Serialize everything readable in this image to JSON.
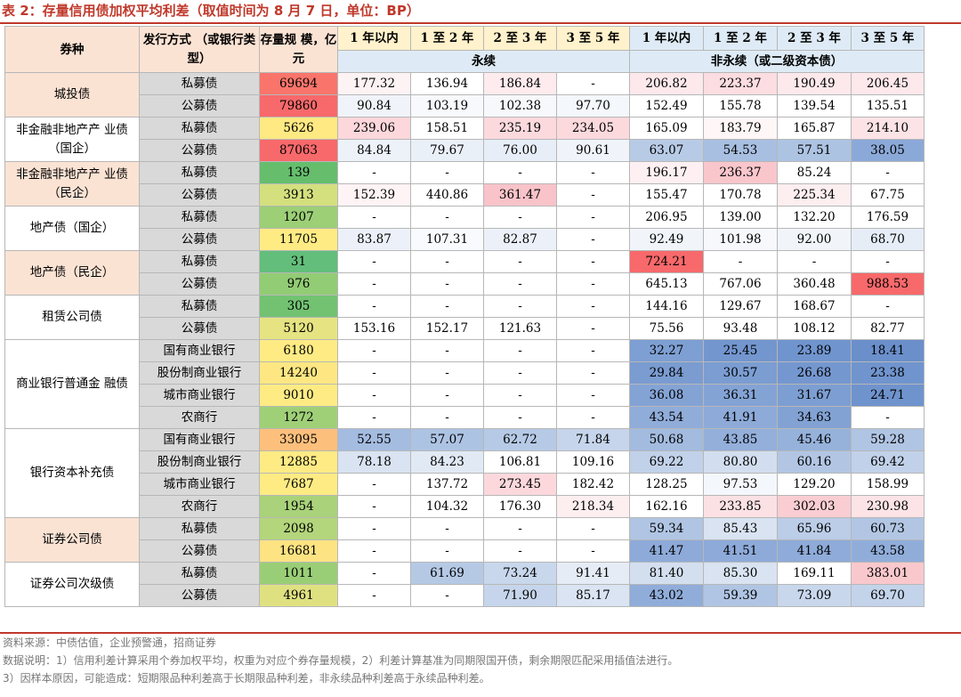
{
  "title": "表 2：存量信用债加权平均利差（取值时间为 8 月 7 日，单位：BP）",
  "header": {
    "variety": "券种",
    "issue_method": "发行方式\n（或银行类型）",
    "scale": "存量规\n模，亿元",
    "terms": [
      "1 年以内",
      "1 至 2 年",
      "2 至 3 年",
      "3 至 5 年",
      "1 年以内",
      "1 至 2 年",
      "2 至 3 年",
      "3 至 5 年"
    ],
    "perpetual": "永续",
    "non_perpetual": "非永续（或二级资本债）"
  },
  "groups": [
    {
      "name": "城投债",
      "cat_bg": "#FBE3D4",
      "rows": [
        {
          "method": "私募债",
          "scale": "69694",
          "scale_bg": "#F9756B",
          "cells": [
            "177.32",
            "136.94",
            "186.84",
            "-",
            "206.82",
            "223.37",
            "190.49",
            "206.45"
          ],
          "cell_bg": [
            "#FEF3F4",
            "#FFFFFF",
            "#FDEBEE",
            "#FFFFFF",
            "#FDE8EB",
            "#FCDDE1",
            "#FDE9EC",
            "#FDE8EB"
          ]
        },
        {
          "method": "公募债",
          "scale": "79860",
          "scale_bg": "#F8696B",
          "cells": [
            "90.84",
            "103.19",
            "102.38",
            "97.70",
            "152.49",
            "155.78",
            "139.54",
            "135.51"
          ],
          "cell_bg": [
            "#F0F4FA",
            "#F7F9FC",
            "#F6F8FC",
            "#F4F7FB",
            "#FFFFFF",
            "#FFFFFF",
            "#FFFFFF",
            "#FFFFFF"
          ]
        }
      ]
    },
    {
      "name": "非金融非地产产\n业债（国企）",
      "cat_bg": "#FFFFFF",
      "rows": [
        {
          "method": "私募债",
          "scale": "5626",
          "scale_bg": "#FFE982",
          "cells": [
            "239.06",
            "158.51",
            "235.19",
            "234.05",
            "165.09",
            "183.79",
            "165.87",
            "214.10"
          ],
          "cell_bg": [
            "#FCD7DB",
            "#FFFFFF",
            "#FCD9DD",
            "#FCD9DD",
            "#FFFFFF",
            "#FEF6F7",
            "#FFFFFF",
            "#FCE3E6"
          ]
        },
        {
          "method": "公募债",
          "scale": "87063",
          "scale_bg": "#F8696B",
          "cells": [
            "84.84",
            "79.67",
            "76.00",
            "90.61",
            "63.07",
            "54.53",
            "57.51",
            "38.05"
          ],
          "cell_bg": [
            "#EDF2F9",
            "#EAF0F8",
            "#E8EEF7",
            "#F0F4FA",
            "#B8CBE6",
            "#A8BFE1",
            "#ADC3E2",
            "#8BA9D8"
          ]
        }
      ]
    },
    {
      "name": "非金融非地产产\n业债（民企）",
      "cat_bg": "#FBE3D4",
      "rows": [
        {
          "method": "私募债",
          "scale": "139",
          "scale_bg": "#66BE6D",
          "cells": [
            "-",
            "-",
            "-",
            "-",
            "196.17",
            "236.37",
            "85.24",
            "-"
          ],
          "cell_bg": [
            "#FFFFFF",
            "#FFFFFF",
            "#FFFFFF",
            "#FFFFFF",
            "#FEF0F2",
            "#F9C6CC",
            "#FFFFFF",
            "#FFFFFF"
          ]
        },
        {
          "method": "公募债",
          "scale": "3913",
          "scale_bg": "#D4E07E",
          "cells": [
            "152.39",
            "440.86",
            "361.47",
            "-",
            "155.47",
            "170.78",
            "225.34",
            "67.75"
          ],
          "cell_bg": [
            "#FEF4F6",
            "#FFFFFF",
            "#F8C3C9",
            "#FFFFFF",
            "#FFFFFF",
            "#FFFFFF",
            "#FDEEF0",
            "#FFFFFF"
          ]
        }
      ]
    },
    {
      "name": "地产债（国企）",
      "cat_bg": "#FFFFFF",
      "rows": [
        {
          "method": "私募债",
          "scale": "1207",
          "scale_bg": "#9CCF76",
          "cells": [
            "-",
            "-",
            "-",
            "-",
            "206.95",
            "139.00",
            "132.20",
            "176.59"
          ],
          "cell_bg": [
            "#FFFFFF",
            "#FFFFFF",
            "#FFFFFF",
            "#FFFFFF",
            "#FFFFFF",
            "#FFFFFF",
            "#FFFFFF",
            "#FFFFFF"
          ]
        },
        {
          "method": "公募债",
          "scale": "11705",
          "scale_bg": "#FEEB84",
          "cells": [
            "83.87",
            "107.31",
            "82.87",
            "-",
            "92.49",
            "101.98",
            "92.00",
            "68.70"
          ],
          "cell_bg": [
            "#ECF1F9",
            "#F8FAFD",
            "#ECF1F9",
            "#FFFFFF",
            "#F1F5FA",
            "#F6F8FC",
            "#F1F5FA",
            "#E6EDF7"
          ]
        }
      ]
    },
    {
      "name": "地产债（民企）",
      "cat_bg": "#FBE3D4",
      "rows": [
        {
          "method": "私募债",
          "scale": "31",
          "scale_bg": "#63BE7B",
          "cells": [
            "-",
            "-",
            "-",
            "-",
            "724.21",
            "-",
            "-",
            "-"
          ],
          "cell_bg": [
            "#FFFFFF",
            "#FFFFFF",
            "#FFFFFF",
            "#FFFFFF",
            "#F8696B",
            "#FFFFFF",
            "#FFFFFF",
            "#FFFFFF"
          ]
        },
        {
          "method": "公募债",
          "scale": "976",
          "scale_bg": "#92CC74",
          "cells": [
            "-",
            "-",
            "-",
            "-",
            "645.13",
            "767.06",
            "360.48",
            "988.53"
          ],
          "cell_bg": [
            "#FFFFFF",
            "#FFFFFF",
            "#FFFFFF",
            "#FFFFFF",
            "#FFFFFF",
            "#FFFFFF",
            "#FFFFFF",
            "#F8696B"
          ]
        }
      ]
    },
    {
      "name": "租赁公司债",
      "cat_bg": "#FFFFFF",
      "rows": [
        {
          "method": "私募债",
          "scale": "305",
          "scale_bg": "#72C272",
          "cells": [
            "-",
            "-",
            "-",
            "-",
            "144.16",
            "129.67",
            "168.67",
            "-"
          ],
          "cell_bg": [
            "#FFFFFF",
            "#FFFFFF",
            "#FFFFFF",
            "#FFFFFF",
            "#FFFFFF",
            "#FFFFFF",
            "#FFFFFF",
            "#FFFFFF"
          ]
        },
        {
          "method": "公募债",
          "scale": "5120",
          "scale_bg": "#E5E382",
          "cells": [
            "153.16",
            "152.17",
            "121.63",
            "-",
            "75.56",
            "93.48",
            "108.12",
            "82.77"
          ],
          "cell_bg": [
            "#FFFFFF",
            "#FFFFFF",
            "#FFFFFF",
            "#FFFFFF",
            "#FFFFFF",
            "#FFFFFF",
            "#FFFFFF",
            "#FFFFFF"
          ]
        }
      ]
    },
    {
      "name": "商业银行普通金\n融债",
      "cat_bg": "#FFFFFF",
      "rows": [
        {
          "method": "国有商业银行",
          "scale": "6180",
          "scale_bg": "#FFEB84",
          "cells": [
            "-",
            "-",
            "-",
            "-",
            "32.27",
            "25.45",
            "23.89",
            "18.41"
          ],
          "cell_bg": [
            "#FFFFFF",
            "#FFFFFF",
            "#FFFFFF",
            "#FFFFFF",
            "#7E9FD3",
            "#7396CF",
            "#7094CE",
            "#6A8FCB"
          ]
        },
        {
          "method": "股份制商业银行",
          "scale": "14240",
          "scale_bg": "#FEE783",
          "cells": [
            "-",
            "-",
            "-",
            "-",
            "29.84",
            "30.57",
            "26.68",
            "23.38"
          ],
          "cell_bg": [
            "#FFFFFF",
            "#FFFFFF",
            "#FFFFFF",
            "#FFFFFF",
            "#7A9CD1",
            "#7B9DD2",
            "#7597D0",
            "#7094CE"
          ]
        },
        {
          "method": "城市商业银行",
          "scale": "9010",
          "scale_bg": "#FFEB84",
          "cells": [
            "-",
            "-",
            "-",
            "-",
            "36.08",
            "36.31",
            "31.67",
            "24.71"
          ],
          "cell_bg": [
            "#FFFFFF",
            "#FFFFFF",
            "#FFFFFF",
            "#FFFFFF",
            "#84A3D5",
            "#84A3D5",
            "#7D9ED2",
            "#6F93CD"
          ]
        },
        {
          "method": "农商行",
          "scale": "1272",
          "scale_bg": "#9FD077",
          "cells": [
            "-",
            "-",
            "-",
            "-",
            "43.54",
            "41.91",
            "34.63",
            "-"
          ],
          "cell_bg": [
            "#FFFFFF",
            "#FFFFFF",
            "#FFFFFF",
            "#FFFFFF",
            "#90ADDA",
            "#8DAAD9",
            "#82A2D4",
            "#FFFFFF"
          ]
        }
      ]
    },
    {
      "name": "银行资本补充债",
      "cat_bg": "#FFFFFF",
      "rows": [
        {
          "method": "国有商业银行",
          "scale": "33095",
          "scale_bg": "#FDBF7C",
          "cells": [
            "52.55",
            "57.07",
            "62.72",
            "71.84",
            "50.68",
            "43.85",
            "45.46",
            "59.28"
          ],
          "cell_bg": [
            "#A4BCE0",
            "#ADC3E3",
            "#B6CAE6",
            "#C6D5EB",
            "#A2BBDF",
            "#93AFDA",
            "#96B2DB",
            "#B0C5E3"
          ]
        },
        {
          "method": "股份制商业银行",
          "scale": "12885",
          "scale_bg": "#FFEB84",
          "cells": [
            "78.18",
            "84.23",
            "106.81",
            "109.16",
            "69.22",
            "80.80",
            "60.16",
            "69.42"
          ],
          "cell_bg": [
            "#D9E3F1",
            "#E1E9F5",
            "#FFFFFF",
            "#FFFFFF",
            "#C1D1E9",
            "#D2DEEF",
            "#B2C6E4",
            "#C1D1E9"
          ]
        },
        {
          "method": "城市商业银行",
          "scale": "7687",
          "scale_bg": "#FFEB84",
          "cells": [
            "-",
            "137.72",
            "273.45",
            "182.42",
            "128.25",
            "97.53",
            "129.20",
            "158.99"
          ],
          "cell_bg": [
            "#FFFFFF",
            "#FFFFFF",
            "#FCD8DC",
            "#FFFFFF",
            "#FFFFFF",
            "#F4F7FB",
            "#FFFFFF",
            "#FFFFFF"
          ]
        },
        {
          "method": "农商行",
          "scale": "1954",
          "scale_bg": "#A9D27A",
          "cells": [
            "-",
            "104.32",
            "176.30",
            "218.34",
            "162.16",
            "233.85",
            "302.03",
            "230.98"
          ],
          "cell_bg": [
            "#FFFFFF",
            "#FFFFFF",
            "#FFFFFF",
            "#FDEEF0",
            "#FFFFFF",
            "#FCE1E4",
            "#F9CDD2",
            "#FCE3E6"
          ]
        }
      ]
    },
    {
      "name": "证券公司债",
      "cat_bg": "#FBE3D4",
      "rows": [
        {
          "method": "私募债",
          "scale": "2098",
          "scale_bg": "#B3D57B",
          "cells": [
            "-",
            "-",
            "-",
            "-",
            "59.34",
            "85.43",
            "65.96",
            "60.73"
          ],
          "cell_bg": [
            "#FFFFFF",
            "#FFFFFF",
            "#FFFFFF",
            "#FFFFFF",
            "#B0C5E3",
            "#D9E3F1",
            "#BBCDE7",
            "#B2C6E4"
          ]
        },
        {
          "method": "公募债",
          "scale": "16681",
          "scale_bg": "#FEE382",
          "cells": [
            "-",
            "-",
            "-",
            "-",
            "41.47",
            "41.51",
            "41.84",
            "43.58"
          ],
          "cell_bg": [
            "#FFFFFF",
            "#FFFFFF",
            "#FFFFFF",
            "#FFFFFF",
            "#8DAAD9",
            "#8DAAD9",
            "#8EABD9",
            "#90ADDA"
          ]
        }
      ]
    },
    {
      "name": "证券公司次级债",
      "cat_bg": "#FFFFFF",
      "rows": [
        {
          "method": "私募债",
          "scale": "1011",
          "scale_bg": "#9ACE76",
          "cells": [
            "-",
            "61.69",
            "73.24",
            "91.41",
            "81.40",
            "85.30",
            "169.11",
            "383.01"
          ],
          "cell_bg": [
            "#FFFFFF",
            "#B5C9E5",
            "#C8D7EC",
            "#E6ECF6",
            "#D3DFEF",
            "#D9E3F1",
            "#FFFFFF",
            "#F9C8CD"
          ]
        },
        {
          "method": "公募债",
          "scale": "4961",
          "scale_bg": "#DFE181",
          "cells": [
            "-",
            "-",
            "71.90",
            "85.17",
            "43.02",
            "59.39",
            "73.09",
            "69.70"
          ],
          "cell_bg": [
            "#FFFFFF",
            "#FFFFFF",
            "#C6D5EB",
            "#DAE4F2",
            "#90ADDA",
            "#B0C5E3",
            "#C8D7EC",
            "#C3D3EA"
          ]
        }
      ]
    }
  ],
  "notes": [
    "资料来源：中债估值，企业预警通，招商证券",
    "数据说明：1）信用利差计算采用个券加权平均，权重为对应个券存量规模，2）利差计算基准为同期限国开债，剩余期限匹配采用插值法进行。",
    "3）因样本原因，可能造成：短期限品种利差高于长期限品种利差，非永续品种利差高于永续品种利差。"
  ],
  "colors": {
    "accent": "#C0392B",
    "header_bg": "#FBE3D4",
    "perpetual_bg": "#FFF2CC",
    "non_perpetual_bg": "#DEEBF6",
    "method_bg": "#D9D9D9"
  }
}
